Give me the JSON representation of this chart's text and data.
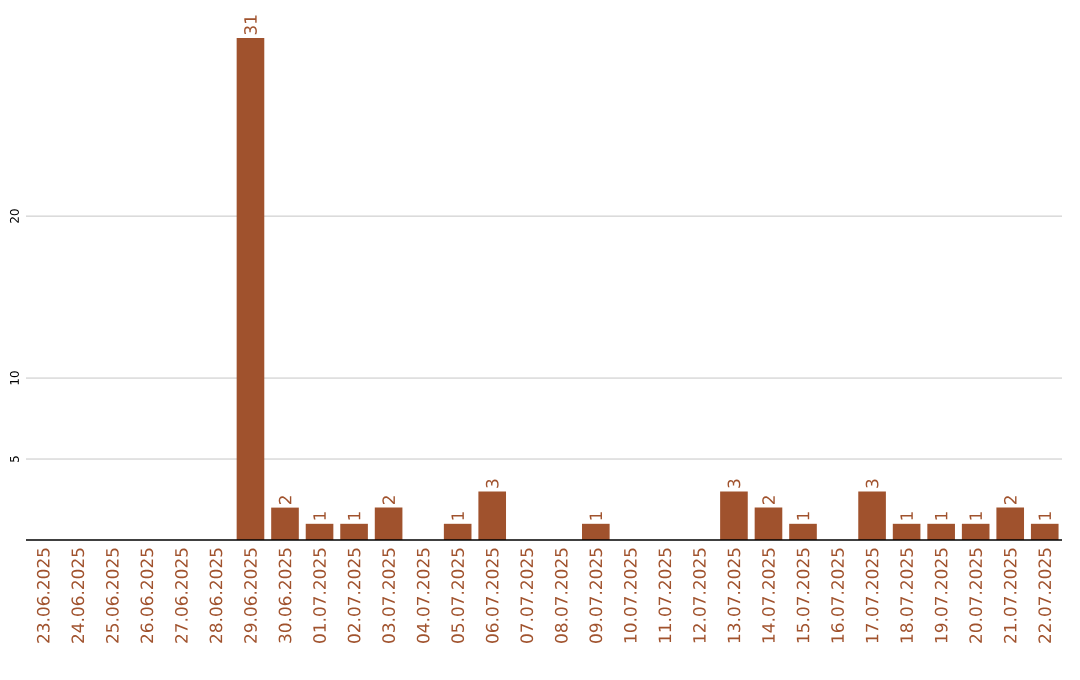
{
  "chart_data": {
    "type": "bar",
    "categories": [
      "23.06.2025",
      "24.06.2025",
      "25.06.2025",
      "26.06.2025",
      "27.06.2025",
      "28.06.2025",
      "29.06.2025",
      "30.06.2025",
      "01.07.2025",
      "02.07.2025",
      "03.07.2025",
      "04.07.2025",
      "05.07.2025",
      "06.07.2025",
      "07.07.2025",
      "08.07.2025",
      "09.07.2025",
      "10.07.2025",
      "11.07.2025",
      "12.07.2025",
      "13.07.2025",
      "14.07.2025",
      "15.07.2025",
      "16.07.2025",
      "17.07.2025",
      "18.07.2025",
      "19.07.2025",
      "20.07.2025",
      "21.07.2025",
      "22.07.2025"
    ],
    "values": [
      0,
      0,
      0,
      0,
      0,
      0,
      31,
      2,
      1,
      1,
      2,
      0,
      1,
      3,
      0,
      0,
      1,
      0,
      0,
      0,
      3,
      2,
      1,
      0,
      3,
      1,
      1,
      1,
      2,
      1
    ],
    "value_labels": [
      null,
      null,
      null,
      null,
      null,
      null,
      "31",
      "2",
      "1",
      "1",
      "2",
      null,
      "1",
      "3",
      null,
      null,
      "1",
      null,
      null,
      null,
      "3",
      "2",
      "1",
      null,
      "3",
      "1",
      "1",
      "1",
      "2",
      "1"
    ],
    "color": "#a0522d",
    "ylim": [
      0,
      31
    ],
    "yticks": [
      5,
      10,
      20
    ],
    "grid": "y"
  }
}
